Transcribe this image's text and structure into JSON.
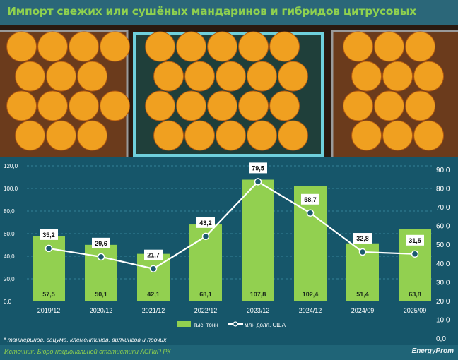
{
  "title": "Импорт свежих или сушёных мандаринов и гибридов цитрусовых",
  "footnote": "* танжеринов, сацума, клементинов, вилкингов и прочих",
  "source": "Источник: Бюро национальной статистики АСПиР РК",
  "logo": "EnergyProm",
  "colors": {
    "bar": "#92d050",
    "line": "#ffffff",
    "marker": "#1a5a6e",
    "background": "#16566a",
    "title": "#8fd14f"
  },
  "chart_data": {
    "type": "bar+line",
    "categories": [
      "2019/12",
      "2020/12",
      "2021/12",
      "2022/12",
      "2023/12",
      "2024/12",
      "2024/09",
      "2025/09"
    ],
    "series": [
      {
        "name": "тыс. тонн",
        "type": "bar",
        "axis": "left",
        "values": [
          57.5,
          50.1,
          42.1,
          68.1,
          107.8,
          102.4,
          51.4,
          63.8
        ],
        "labels": [
          "57,5",
          "50,1",
          "42,1",
          "68,1",
          "107,8",
          "102,4",
          "51,4",
          "63,8"
        ]
      },
      {
        "name": "млн долл. США",
        "type": "line",
        "axis": "right",
        "values": [
          35.2,
          29.6,
          21.7,
          43.2,
          79.5,
          58.7,
          32.8,
          31.5
        ],
        "labels": [
          "35,2",
          "29,6",
          "21,7",
          "43,2",
          "79,5",
          "58,7",
          "32,8",
          "31,5"
        ]
      }
    ],
    "left_axis": {
      "ylim": [
        0,
        120
      ],
      "ticks": [
        "0,0",
        "20,0",
        "40,0",
        "60,0",
        "80,0",
        "100,0",
        "120,0"
      ]
    },
    "right_axis": {
      "ylim": [
        0,
        90
      ],
      "ticks": [
        "0,0",
        "10,0",
        "20,0",
        "30,0",
        "40,0",
        "50,0",
        "60,0",
        "70,0",
        "80,0",
        "90,0"
      ]
    },
    "grid": true,
    "legend_position": "bottom"
  }
}
